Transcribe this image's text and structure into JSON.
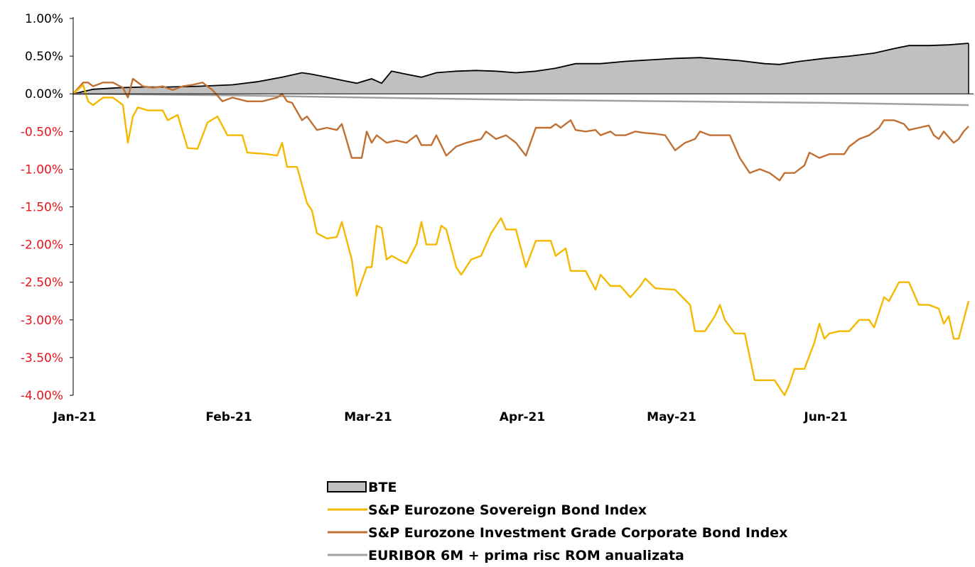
{
  "chart_data": {
    "type": "line",
    "title": "",
    "xlabel": "",
    "ylabel": "",
    "ylim": [
      -4.0,
      1.0
    ],
    "xlim": [
      "2021-01-01",
      "2021-07-01"
    ],
    "y_ticks": [
      "1.00%",
      "0.50%",
      "0.00%",
      "-0.50%",
      "-1.00%",
      "-1.50%",
      "-2.00%",
      "-2.50%",
      "-3.00%",
      "-3.50%",
      "-4.00%"
    ],
    "y_tick_values": [
      1.0,
      0.5,
      0.0,
      -0.5,
      -1.0,
      -1.5,
      -2.0,
      -2.5,
      -3.0,
      -3.5,
      -4.0
    ],
    "y_tick_colors": {
      "positive_zero": "#000000",
      "negative": "#e8141c"
    },
    "x_ticks": [
      {
        "label": "Jan-21",
        "date": "2021-01-01"
      },
      {
        "label": "Feb-21",
        "date": "2021-02-01"
      },
      {
        "label": "Mar-21",
        "date": "2021-03-01"
      },
      {
        "label": "Apr-21",
        "date": "2021-04-01"
      },
      {
        "label": "May-21",
        "date": "2021-05-01"
      },
      {
        "label": "Jun-21",
        "date": "2021-06-01"
      }
    ],
    "grid": false,
    "legend_position": "bottom-center",
    "series": [
      {
        "name": "BTE",
        "style": "area",
        "color": "#c0c0c0",
        "stroke": "#000000",
        "points": [
          [
            "2021-01-01",
            0.0
          ],
          [
            "2021-01-05",
            0.06
          ],
          [
            "2021-01-10",
            0.08
          ],
          [
            "2021-01-15",
            0.09
          ],
          [
            "2021-01-20",
            0.09
          ],
          [
            "2021-01-26",
            0.1
          ],
          [
            "2021-02-02",
            0.12
          ],
          [
            "2021-02-07",
            0.16
          ],
          [
            "2021-02-12",
            0.22
          ],
          [
            "2021-02-16",
            0.28
          ],
          [
            "2021-02-18",
            0.26
          ],
          [
            "2021-02-21",
            0.22
          ],
          [
            "2021-02-24",
            0.18
          ],
          [
            "2021-02-27",
            0.14
          ],
          [
            "2021-03-02",
            0.2
          ],
          [
            "2021-03-04",
            0.14
          ],
          [
            "2021-03-06",
            0.3
          ],
          [
            "2021-03-09",
            0.26
          ],
          [
            "2021-03-12",
            0.22
          ],
          [
            "2021-03-15",
            0.28
          ],
          [
            "2021-03-19",
            0.3
          ],
          [
            "2021-03-23",
            0.31
          ],
          [
            "2021-03-27",
            0.3
          ],
          [
            "2021-03-31",
            0.28
          ],
          [
            "2021-04-04",
            0.3
          ],
          [
            "2021-04-08",
            0.34
          ],
          [
            "2021-04-12",
            0.4
          ],
          [
            "2021-04-17",
            0.4
          ],
          [
            "2021-04-22",
            0.43
          ],
          [
            "2021-04-27",
            0.45
          ],
          [
            "2021-05-02",
            0.47
          ],
          [
            "2021-05-07",
            0.48
          ],
          [
            "2021-05-11",
            0.46
          ],
          [
            "2021-05-15",
            0.44
          ],
          [
            "2021-05-20",
            0.4
          ],
          [
            "2021-05-23",
            0.39
          ],
          [
            "2021-05-27",
            0.43
          ],
          [
            "2021-06-01",
            0.47
          ],
          [
            "2021-06-06",
            0.5
          ],
          [
            "2021-06-11",
            0.54
          ],
          [
            "2021-06-15",
            0.6
          ],
          [
            "2021-06-18",
            0.64
          ],
          [
            "2021-06-22",
            0.64
          ],
          [
            "2021-06-26",
            0.65
          ],
          [
            "2021-06-30",
            0.67
          ]
        ]
      },
      {
        "name": "S&P Eurozone Sovereign Bond Index",
        "style": "line",
        "color": "#f5b800",
        "points": [
          [
            "2021-01-01",
            0.0
          ],
          [
            "2021-01-03",
            0.12
          ],
          [
            "2021-01-04",
            -0.1
          ],
          [
            "2021-01-05",
            -0.15
          ],
          [
            "2021-01-07",
            -0.05
          ],
          [
            "2021-01-09",
            -0.05
          ],
          [
            "2021-01-11",
            -0.15
          ],
          [
            "2021-01-12",
            -0.65
          ],
          [
            "2021-01-13",
            -0.3
          ],
          [
            "2021-01-14",
            -0.18
          ],
          [
            "2021-01-16",
            -0.22
          ],
          [
            "2021-01-19",
            -0.22
          ],
          [
            "2021-01-20",
            -0.35
          ],
          [
            "2021-01-22",
            -0.28
          ],
          [
            "2021-01-24",
            -0.72
          ],
          [
            "2021-01-26",
            -0.73
          ],
          [
            "2021-01-28",
            -0.38
          ],
          [
            "2021-01-30",
            -0.3
          ],
          [
            "2021-02-01",
            -0.55
          ],
          [
            "2021-02-04",
            -0.55
          ],
          [
            "2021-02-05",
            -0.78
          ],
          [
            "2021-02-09",
            -0.8
          ],
          [
            "2021-02-11",
            -0.82
          ],
          [
            "2021-02-12",
            -0.65
          ],
          [
            "2021-02-13",
            -0.97
          ],
          [
            "2021-02-15",
            -0.97
          ],
          [
            "2021-02-17",
            -1.45
          ],
          [
            "2021-02-18",
            -1.55
          ],
          [
            "2021-02-19",
            -1.85
          ],
          [
            "2021-02-21",
            -1.92
          ],
          [
            "2021-02-23",
            -1.9
          ],
          [
            "2021-02-24",
            -1.7
          ],
          [
            "2021-02-26",
            -2.2
          ],
          [
            "2021-02-27",
            -2.68
          ],
          [
            "2021-03-01",
            -2.3
          ],
          [
            "2021-03-02",
            -2.3
          ],
          [
            "2021-03-03",
            -1.75
          ],
          [
            "2021-03-04",
            -1.78
          ],
          [
            "2021-03-05",
            -2.2
          ],
          [
            "2021-03-06",
            -2.15
          ],
          [
            "2021-03-08",
            -2.22
          ],
          [
            "2021-03-09",
            -2.25
          ],
          [
            "2021-03-11",
            -2.0
          ],
          [
            "2021-03-12",
            -1.7
          ],
          [
            "2021-03-13",
            -2.0
          ],
          [
            "2021-03-15",
            -2.0
          ],
          [
            "2021-03-16",
            -1.75
          ],
          [
            "2021-03-17",
            -1.8
          ],
          [
            "2021-03-19",
            -2.3
          ],
          [
            "2021-03-20",
            -2.4
          ],
          [
            "2021-03-22",
            -2.2
          ],
          [
            "2021-03-24",
            -2.15
          ],
          [
            "2021-03-26",
            -1.85
          ],
          [
            "2021-03-28",
            -1.65
          ],
          [
            "2021-03-29",
            -1.8
          ],
          [
            "2021-03-31",
            -1.8
          ],
          [
            "2021-04-02",
            -2.3
          ],
          [
            "2021-04-04",
            -1.95
          ],
          [
            "2021-04-07",
            -1.95
          ],
          [
            "2021-04-08",
            -2.15
          ],
          [
            "2021-04-10",
            -2.05
          ],
          [
            "2021-04-11",
            -2.35
          ],
          [
            "2021-04-14",
            -2.35
          ],
          [
            "2021-04-16",
            -2.6
          ],
          [
            "2021-04-17",
            -2.4
          ],
          [
            "2021-04-19",
            -2.55
          ],
          [
            "2021-04-21",
            -2.55
          ],
          [
            "2021-04-23",
            -2.7
          ],
          [
            "2021-04-25",
            -2.55
          ],
          [
            "2021-04-26",
            -2.45
          ],
          [
            "2021-04-28",
            -2.58
          ],
          [
            "2021-05-02",
            -2.6
          ],
          [
            "2021-05-05",
            -2.8
          ],
          [
            "2021-05-06",
            -3.15
          ],
          [
            "2021-05-08",
            -3.15
          ],
          [
            "2021-05-10",
            -2.95
          ],
          [
            "2021-05-11",
            -2.8
          ],
          [
            "2021-05-12",
            -3.0
          ],
          [
            "2021-05-14",
            -3.18
          ],
          [
            "2021-05-16",
            -3.18
          ],
          [
            "2021-05-18",
            -3.8
          ],
          [
            "2021-05-22",
            -3.8
          ],
          [
            "2021-05-24",
            -4.0
          ],
          [
            "2021-05-25",
            -3.85
          ],
          [
            "2021-05-26",
            -3.65
          ],
          [
            "2021-05-28",
            -3.65
          ],
          [
            "2021-05-30",
            -3.3
          ],
          [
            "2021-05-31",
            -3.05
          ],
          [
            "2021-06-01",
            -3.25
          ],
          [
            "2021-06-02",
            -3.18
          ],
          [
            "2021-06-04",
            -3.15
          ],
          [
            "2021-06-06",
            -3.15
          ],
          [
            "2021-06-08",
            -3.0
          ],
          [
            "2021-06-10",
            -3.0
          ],
          [
            "2021-06-11",
            -3.1
          ],
          [
            "2021-06-13",
            -2.7
          ],
          [
            "2021-06-14",
            -2.75
          ],
          [
            "2021-06-16",
            -2.5
          ],
          [
            "2021-06-18",
            -2.5
          ],
          [
            "2021-06-20",
            -2.8
          ],
          [
            "2021-06-22",
            -2.8
          ],
          [
            "2021-06-24",
            -2.85
          ],
          [
            "2021-06-25",
            -3.05
          ],
          [
            "2021-06-26",
            -2.95
          ],
          [
            "2021-06-27",
            -3.25
          ],
          [
            "2021-06-28",
            -3.25
          ],
          [
            "2021-06-29",
            -3.0
          ],
          [
            "2021-06-30",
            -2.75
          ]
        ]
      },
      {
        "name": "S&P Eurozone Investment Grade Corporate Bond Index",
        "style": "line",
        "color": "#c07033",
        "points": [
          [
            "2021-01-01",
            0.0
          ],
          [
            "2021-01-03",
            0.15
          ],
          [
            "2021-01-04",
            0.15
          ],
          [
            "2021-01-05",
            0.1
          ],
          [
            "2021-01-07",
            0.15
          ],
          [
            "2021-01-09",
            0.15
          ],
          [
            "2021-01-11",
            0.08
          ],
          [
            "2021-01-12",
            -0.05
          ],
          [
            "2021-01-13",
            0.2
          ],
          [
            "2021-01-15",
            0.1
          ],
          [
            "2021-01-17",
            0.08
          ],
          [
            "2021-01-19",
            0.1
          ],
          [
            "2021-01-21",
            0.05
          ],
          [
            "2021-01-23",
            0.1
          ],
          [
            "2021-01-25",
            0.12
          ],
          [
            "2021-01-27",
            0.15
          ],
          [
            "2021-01-29",
            0.05
          ],
          [
            "2021-01-31",
            -0.1
          ],
          [
            "2021-02-02",
            -0.05
          ],
          [
            "2021-02-05",
            -0.1
          ],
          [
            "2021-02-08",
            -0.1
          ],
          [
            "2021-02-11",
            -0.05
          ],
          [
            "2021-02-12",
            0.0
          ],
          [
            "2021-02-13",
            -0.1
          ],
          [
            "2021-02-14",
            -0.12
          ],
          [
            "2021-02-16",
            -0.35
          ],
          [
            "2021-02-17",
            -0.3
          ],
          [
            "2021-02-19",
            -0.48
          ],
          [
            "2021-02-21",
            -0.45
          ],
          [
            "2021-02-23",
            -0.48
          ],
          [
            "2021-02-24",
            -0.4
          ],
          [
            "2021-02-26",
            -0.85
          ],
          [
            "2021-02-28",
            -0.85
          ],
          [
            "2021-03-01",
            -0.5
          ],
          [
            "2021-03-02",
            -0.65
          ],
          [
            "2021-03-03",
            -0.55
          ],
          [
            "2021-03-05",
            -0.65
          ],
          [
            "2021-03-07",
            -0.62
          ],
          [
            "2021-03-09",
            -0.65
          ],
          [
            "2021-03-11",
            -0.55
          ],
          [
            "2021-03-12",
            -0.68
          ],
          [
            "2021-03-14",
            -0.68
          ],
          [
            "2021-03-15",
            -0.55
          ],
          [
            "2021-03-17",
            -0.82
          ],
          [
            "2021-03-19",
            -0.7
          ],
          [
            "2021-03-21",
            -0.65
          ],
          [
            "2021-03-24",
            -0.6
          ],
          [
            "2021-03-25",
            -0.5
          ],
          [
            "2021-03-27",
            -0.6
          ],
          [
            "2021-03-29",
            -0.55
          ],
          [
            "2021-03-31",
            -0.65
          ],
          [
            "2021-04-02",
            -0.82
          ],
          [
            "2021-04-04",
            -0.45
          ],
          [
            "2021-04-07",
            -0.45
          ],
          [
            "2021-04-08",
            -0.4
          ],
          [
            "2021-04-09",
            -0.45
          ],
          [
            "2021-04-11",
            -0.35
          ],
          [
            "2021-04-12",
            -0.48
          ],
          [
            "2021-04-14",
            -0.5
          ],
          [
            "2021-04-16",
            -0.48
          ],
          [
            "2021-04-17",
            -0.55
          ],
          [
            "2021-04-19",
            -0.5
          ],
          [
            "2021-04-20",
            -0.55
          ],
          [
            "2021-04-22",
            -0.55
          ],
          [
            "2021-04-24",
            -0.5
          ],
          [
            "2021-04-26",
            -0.52
          ],
          [
            "2021-04-28",
            -0.53
          ],
          [
            "2021-04-30",
            -0.55
          ],
          [
            "2021-05-02",
            -0.75
          ],
          [
            "2021-05-04",
            -0.65
          ],
          [
            "2021-05-06",
            -0.6
          ],
          [
            "2021-05-07",
            -0.5
          ],
          [
            "2021-05-09",
            -0.55
          ],
          [
            "2021-05-13",
            -0.55
          ],
          [
            "2021-05-15",
            -0.85
          ],
          [
            "2021-05-16",
            -0.95
          ],
          [
            "2021-05-17",
            -1.05
          ],
          [
            "2021-05-19",
            -1.0
          ],
          [
            "2021-05-21",
            -1.05
          ],
          [
            "2021-05-23",
            -1.15
          ],
          [
            "2021-05-24",
            -1.05
          ],
          [
            "2021-05-26",
            -1.05
          ],
          [
            "2021-05-28",
            -0.95
          ],
          [
            "2021-05-29",
            -0.78
          ],
          [
            "2021-05-31",
            -0.85
          ],
          [
            "2021-06-02",
            -0.8
          ],
          [
            "2021-06-05",
            -0.8
          ],
          [
            "2021-06-06",
            -0.7
          ],
          [
            "2021-06-08",
            -0.6
          ],
          [
            "2021-06-10",
            -0.55
          ],
          [
            "2021-06-12",
            -0.45
          ],
          [
            "2021-06-13",
            -0.35
          ],
          [
            "2021-06-15",
            -0.35
          ],
          [
            "2021-06-17",
            -0.4
          ],
          [
            "2021-06-18",
            -0.48
          ],
          [
            "2021-06-20",
            -0.45
          ],
          [
            "2021-06-22",
            -0.42
          ],
          [
            "2021-06-23",
            -0.55
          ],
          [
            "2021-06-24",
            -0.6
          ],
          [
            "2021-06-25",
            -0.5
          ],
          [
            "2021-06-27",
            -0.65
          ],
          [
            "2021-06-28",
            -0.6
          ],
          [
            "2021-06-29",
            -0.5
          ],
          [
            "2021-06-30",
            -0.43
          ]
        ]
      },
      {
        "name": "EURIBOR 6M + prima risc ROM anualizata",
        "style": "line",
        "color": "#a0a0a0",
        "points": [
          [
            "2021-01-01",
            0.0
          ],
          [
            "2021-02-01",
            -0.02
          ],
          [
            "2021-03-01",
            -0.05
          ],
          [
            "2021-04-01",
            -0.08
          ],
          [
            "2021-05-01",
            -0.1
          ],
          [
            "2021-06-01",
            -0.12
          ],
          [
            "2021-06-30",
            -0.15
          ]
        ]
      }
    ]
  }
}
